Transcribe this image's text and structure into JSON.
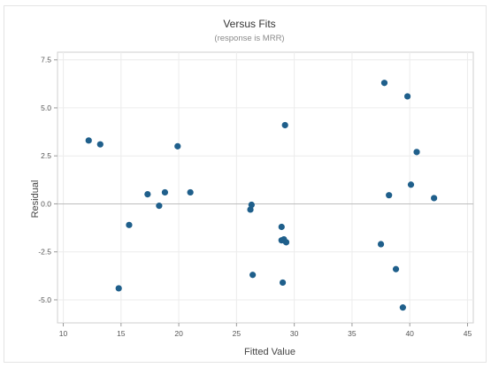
{
  "chart_data": {
    "type": "scatter",
    "title": "Versus Fits",
    "subtitle": "(response is MRR)",
    "xlabel": "Fitted Value",
    "ylabel": "Residual",
    "xlim": [
      9.5,
      45.5
    ],
    "ylim": [
      -6.2,
      7.9
    ],
    "xticks": [
      10,
      15,
      20,
      25,
      30,
      35,
      40,
      45
    ],
    "yticks": [
      -5.0,
      -2.5,
      0.0,
      2.5,
      5.0,
      7.5
    ],
    "xtick_labels": [
      "10",
      "15",
      "20",
      "25",
      "30",
      "35",
      "40",
      "45"
    ],
    "ytick_labels": [
      "-5.0",
      "-2.5",
      "0.0",
      "2.5",
      "5.0",
      "7.5"
    ],
    "grid": true,
    "reference_line_y": 0,
    "point_color": "#1f5f8b",
    "points": [
      {
        "x": 12.2,
        "y": 3.3
      },
      {
        "x": 13.2,
        "y": 3.1
      },
      {
        "x": 14.8,
        "y": -4.4
      },
      {
        "x": 15.7,
        "y": -1.1
      },
      {
        "x": 17.3,
        "y": 0.5
      },
      {
        "x": 18.3,
        "y": -0.1
      },
      {
        "x": 18.8,
        "y": 0.6
      },
      {
        "x": 19.9,
        "y": 3.0
      },
      {
        "x": 21.0,
        "y": 0.6
      },
      {
        "x": 26.2,
        "y": -0.3
      },
      {
        "x": 26.3,
        "y": -0.05
      },
      {
        "x": 26.4,
        "y": -3.7
      },
      {
        "x": 28.9,
        "y": -1.2
      },
      {
        "x": 28.9,
        "y": -1.9
      },
      {
        "x": 29.1,
        "y": -1.85
      },
      {
        "x": 29.3,
        "y": -2.0
      },
      {
        "x": 29.0,
        "y": -4.1
      },
      {
        "x": 29.2,
        "y": 4.1
      },
      {
        "x": 37.5,
        "y": -2.1
      },
      {
        "x": 37.8,
        "y": 6.3
      },
      {
        "x": 38.2,
        "y": 0.45
      },
      {
        "x": 38.8,
        "y": -3.4
      },
      {
        "x": 39.4,
        "y": -5.4
      },
      {
        "x": 39.8,
        "y": 5.6
      },
      {
        "x": 40.1,
        "y": 1.0
      },
      {
        "x": 40.6,
        "y": 2.7
      },
      {
        "x": 42.1,
        "y": 0.3
      }
    ]
  }
}
